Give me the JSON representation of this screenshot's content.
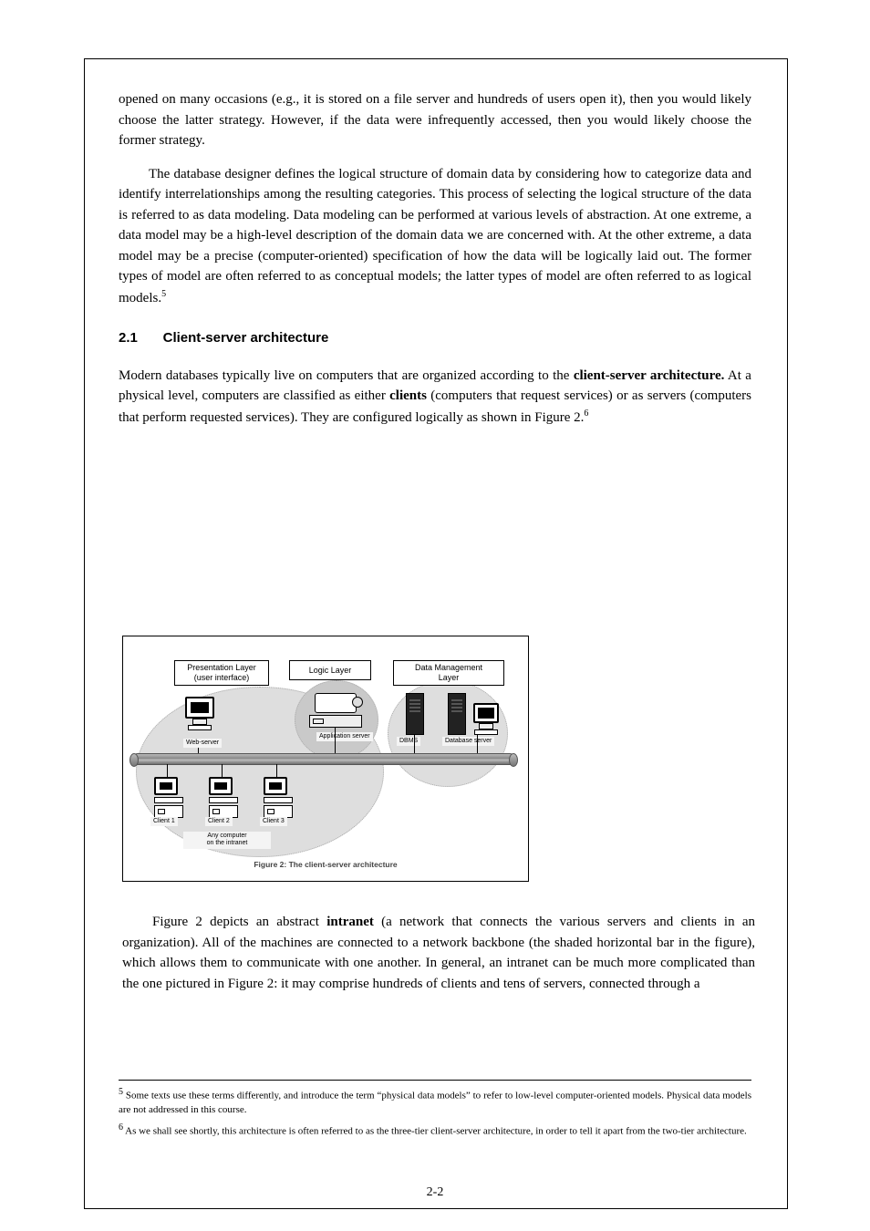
{
  "paragraphs": {
    "p1a": "opened on many occasions (e.g., it is stored on a file server and hundreds of users open it), then you would likely choose the latter strategy.",
    "p1b": "  However, if the data were infrequently accessed, then you would likely choose the former strategy.",
    "p2": "The database designer defines the logical structure of domain data by considering how to categorize data and identify interrelationships among the resulting categories. This process of selecting the logical structure of the data is referred to as data modeling. Data modeling can be performed at various levels of abstraction. At one extreme, a data model may be a high-level description of the domain data we are concerned with. At the other extreme, a data model may be a precise (computer-oriented) specification of how the data will be logically laid out. The former types of model are often referred to as conceptual models; the latter types of model are often referred to as logical models.",
    "p2_fn": "5",
    "p3_head": "2.1",
    "p3_title": "Client-server architecture",
    "p4": "Modern databases typically live on computers that are organized according to the ",
    "p4b": "client-server architecture.",
    "p4c": " At a physical level, computers are classified as either ",
    "p4d": "clients",
    "p4e": " (computers that request services) or as servers (computers that perform requested services). They are configured logically as shown in Figure 2.",
    "p4f": "6",
    "boxlabels": {
      "left": "Presentation Layer\n(user interface)",
      "mid": "Logic Layer",
      "right": "Data Management\nLayer"
    },
    "devlabels": {
      "webserver": "Web-server",
      "cl1": "Client 1",
      "cl2": "Client 2",
      "cl3": "Client 3",
      "any": "Any computer\non the intranet",
      "app": "Application server",
      "dbms": "DBMS",
      "db": "Database server"
    },
    "figtitle": "Figure 2: The client-server architecture",
    "p5a": "Figure 2 depicts an abstract ",
    "p5b": "intranet",
    "p5c": " (a network that connects the various servers and clients in an organization). All of the machines are connected to a network backbone (the shaded horizontal bar in the figure), which allows them to communicate with one another. In general, an intranet can be much more complicated than the one pictured in Figure 2: it may comprise hundreds of clients and tens of servers, connected through a",
    "fn5": " Some texts use these terms differently, and introduce the term “physical data models” to refer to low-level computer-oriented models. Physical data models are not addressed in this course.",
    "fn5n": "5",
    "fn6": " As we shall see shortly, this architecture is often referred to as the three-tier client-server architecture, in order to tell it apart from the two-tier architecture.",
    "fn6n": "6"
  },
  "pagenum": "2-2",
  "layout": {
    "figure": {
      "backbone_color_top": "#b8b8b8",
      "backbone_color_bot": "#6f6f6f",
      "ellipse_fill_light": "#dedede",
      "ellipse_fill_dark": "#c9c9c9"
    }
  }
}
